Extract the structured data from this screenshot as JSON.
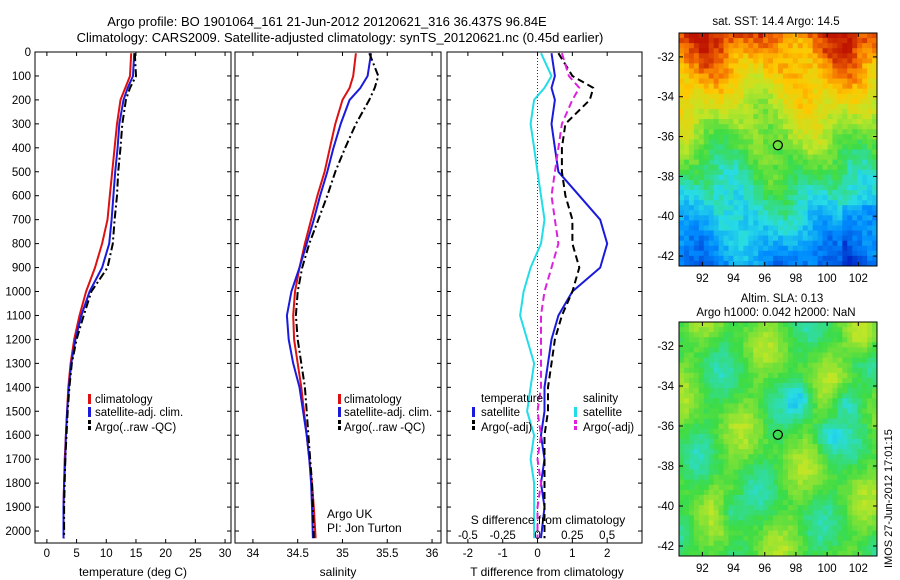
{
  "header": {
    "line1": "Argo profile: BO 1901064_161 21-Jun-2012 20120621_316 36.437S 96.84E",
    "line2": "Climatology: CARS2009. Satellite-adjusted climatology: synTS_20120621.nc (0.45d earlier)"
  },
  "credits": {
    "line1": "Argo UK",
    "line2": "PI: Jon Turton"
  },
  "side_stamp": "IMOS 27-Jun-2012 17:01:15",
  "colors": {
    "climatology": "#dd1111",
    "satellite": "#1a1add",
    "argo": "#000000",
    "salinity_sat": "#22dde8",
    "salinity_argo": "#dd22dd"
  },
  "chart_data": [
    {
      "id": "temperature",
      "type": "line",
      "xlabel": "temperature (deg C)",
      "ylabel": "",
      "xlim": [
        -2,
        31
      ],
      "ylim": [
        2050,
        0
      ],
      "xticks": [
        0,
        5,
        10,
        15,
        20,
        25,
        30
      ],
      "yticks": [
        0,
        100,
        200,
        300,
        400,
        500,
        600,
        700,
        800,
        900,
        1000,
        1100,
        1200,
        1300,
        1400,
        1500,
        1600,
        1700,
        1800,
        1900,
        2000
      ],
      "legend": [
        "climatology",
        "satellite-adj. clim.",
        "Argo(..raw -QC)"
      ],
      "series": [
        {
          "name": "climatology",
          "style": "solid",
          "color": "#dd1111",
          "x": [
            14.2,
            14.0,
            13.2,
            12.4,
            11.8,
            11.4,
            11.0,
            10.6,
            10.2,
            9.3,
            8.1,
            6.6,
            5.5,
            4.6,
            4.0,
            3.6,
            3.4,
            3.2,
            3.0,
            2.9,
            2.8,
            2.8
          ],
          "y": [
            5,
            100,
            150,
            200,
            300,
            400,
            500,
            600,
            700,
            800,
            900,
            1000,
            1100,
            1200,
            1300,
            1400,
            1500,
            1600,
            1700,
            1800,
            1900,
            2030
          ]
        },
        {
          "name": "satellite-adj. clim.",
          "style": "solid",
          "color": "#1a1add",
          "x": [
            14.7,
            14.5,
            13.6,
            12.9,
            12.2,
            11.9,
            11.5,
            11.2,
            10.9,
            10.5,
            9.3,
            7.2,
            5.8,
            4.8,
            4.1,
            3.7,
            3.4,
            3.2,
            3.1,
            2.9,
            2.8,
            2.8
          ],
          "y": [
            5,
            100,
            150,
            200,
            300,
            400,
            500,
            600,
            700,
            800,
            900,
            1000,
            1100,
            1200,
            1300,
            1400,
            1500,
            1600,
            1700,
            1800,
            1900,
            2030
          ]
        },
        {
          "name": "Argo(..raw -QC)",
          "style": "dashdot",
          "color": "#000000",
          "x": [
            14.8,
            15.0,
            14.0,
            13.3,
            12.7,
            12.4,
            12.0,
            11.8,
            11.4,
            11.1,
            10.2,
            7.5,
            6.2,
            5.0,
            4.2,
            3.8,
            3.5,
            3.3,
            3.1,
            3.0,
            2.9,
            2.9
          ],
          "y": [
            5,
            100,
            150,
            200,
            300,
            400,
            500,
            600,
            700,
            800,
            900,
            1000,
            1100,
            1200,
            1300,
            1400,
            1500,
            1600,
            1700,
            1800,
            1900,
            2030
          ]
        }
      ]
    },
    {
      "id": "salinity",
      "type": "line",
      "xlabel": "salinity",
      "xlim": [
        33.8,
        36.1
      ],
      "ylim": [
        2050,
        0
      ],
      "xticks": [
        34,
        34.5,
        35,
        35.5,
        36
      ],
      "legend": [
        "climatology",
        "satellite-adj. clim.",
        "Argo(..raw -QC)"
      ],
      "series": [
        {
          "name": "climatology",
          "style": "solid",
          "color": "#dd1111",
          "x": [
            35.15,
            35.12,
            35.08,
            35.0,
            34.92,
            34.86,
            34.8,
            34.72,
            34.65,
            34.58,
            34.52,
            34.47,
            34.45,
            34.46,
            34.5,
            34.54,
            34.57,
            34.6,
            34.63,
            34.66,
            34.68,
            34.7
          ],
          "y": [
            5,
            100,
            150,
            200,
            300,
            400,
            500,
            600,
            700,
            800,
            900,
            1000,
            1100,
            1200,
            1300,
            1400,
            1500,
            1600,
            1700,
            1800,
            1900,
            2030
          ]
        },
        {
          "name": "satellite-adj. clim.",
          "style": "solid",
          "color": "#1a1add",
          "x": [
            35.32,
            35.28,
            35.2,
            35.08,
            34.98,
            34.9,
            34.83,
            34.75,
            34.68,
            34.6,
            34.52,
            34.43,
            34.38,
            34.4,
            34.45,
            34.52,
            34.56,
            34.6,
            34.63,
            34.65,
            34.66,
            34.67
          ],
          "y": [
            5,
            100,
            150,
            200,
            300,
            400,
            500,
            600,
            700,
            800,
            900,
            1000,
            1100,
            1200,
            1300,
            1400,
            1500,
            1600,
            1700,
            1800,
            1900,
            2030
          ]
        },
        {
          "name": "Argo(..raw -QC)",
          "style": "dashdot",
          "color": "#000000",
          "x": [
            35.3,
            35.4,
            35.36,
            35.3,
            35.15,
            35.03,
            34.92,
            34.83,
            34.73,
            34.63,
            34.55,
            34.5,
            34.48,
            34.5,
            34.54,
            34.58,
            34.6,
            34.62,
            34.64,
            34.66,
            34.67,
            34.68
          ],
          "y": [
            5,
            100,
            150,
            200,
            300,
            400,
            500,
            600,
            700,
            800,
            900,
            1000,
            1100,
            1200,
            1300,
            1400,
            1500,
            1600,
            1700,
            1800,
            1900,
            2030
          ]
        }
      ]
    },
    {
      "id": "difference",
      "type": "line",
      "xlabel": "T difference from climatology",
      "xlabel_top": "S difference from climatology",
      "xlim": [
        -2.6,
        3.0
      ],
      "ylim": [
        2050,
        0
      ],
      "xticks": [
        -2,
        -1,
        0,
        1,
        2
      ],
      "xticks_s": [
        "-0.5",
        "-0.25",
        "0",
        "0.25",
        "0.5"
      ],
      "xticks_s_pos": [
        -2,
        -1,
        0,
        1,
        2
      ],
      "legend_temperature": {
        "title": "temperature",
        "items": [
          "satellite",
          "Argo(-adj)"
        ]
      },
      "legend_salinity": {
        "title": "salinity",
        "items": [
          "satellite",
          "Argo(-adj)"
        ]
      },
      "series": [
        {
          "name": "temperature satellite",
          "style": "solid",
          "color": "#1a1add",
          "x": [
            0.4,
            0.5,
            0.4,
            0.5,
            0.4,
            0.5,
            0.6,
            1.2,
            1.8,
            2.0,
            1.8,
            1.0,
            0.6,
            0.4,
            0.3,
            0.2,
            0.2,
            0.1,
            0.2,
            0.1,
            0.2,
            0.1
          ],
          "y": [
            5,
            100,
            150,
            200,
            300,
            400,
            500,
            600,
            700,
            800,
            900,
            1000,
            1100,
            1200,
            1300,
            1400,
            1500,
            1600,
            1700,
            1800,
            1900,
            2030
          ]
        },
        {
          "name": "temperature Argo(-adj)",
          "style": "dashed",
          "color": "#000000",
          "x": [
            0.6,
            1.0,
            1.6,
            1.5,
            0.8,
            0.7,
            0.7,
            0.8,
            1.0,
            1.0,
            1.2,
            1.0,
            0.7,
            0.5,
            0.4,
            0.3,
            0.3,
            0.2,
            0.2,
            0.2,
            0.2,
            0.2
          ],
          "y": [
            5,
            100,
            150,
            200,
            300,
            400,
            500,
            600,
            700,
            800,
            900,
            1000,
            1100,
            1200,
            1300,
            1400,
            1500,
            1600,
            1700,
            1800,
            1900,
            2030
          ]
        },
        {
          "name": "salinity satellite",
          "style": "solid",
          "color": "#22dde8",
          "x": [
            0.1,
            0.4,
            0.2,
            -0.1,
            -0.2,
            -0.1,
            0.0,
            0.1,
            0.2,
            0.1,
            -0.2,
            -0.4,
            -0.5,
            -0.3,
            -0.1,
            -0.2,
            -0.3,
            -0.1,
            -0.2,
            -0.1,
            -0.1,
            -0.1
          ],
          "y": [
            5,
            100,
            150,
            200,
            300,
            400,
            500,
            600,
            700,
            800,
            900,
            1000,
            1100,
            1200,
            1300,
            1400,
            1500,
            1600,
            1700,
            1800,
            1900,
            2030
          ]
        },
        {
          "name": "salinity Argo(-adj)",
          "style": "dashed",
          "color": "#dd22dd",
          "x": [
            0.7,
            0.9,
            1.2,
            1.0,
            0.7,
            0.6,
            0.5,
            0.4,
            0.5,
            0.6,
            0.4,
            0.2,
            0.1,
            0.1,
            0.1,
            0.1,
            0.0,
            0.1,
            0.0,
            0.1,
            0.0,
            0.0
          ],
          "y": [
            5,
            100,
            150,
            200,
            300,
            400,
            500,
            600,
            700,
            800,
            900,
            1000,
            1100,
            1200,
            1300,
            1400,
            1500,
            1600,
            1700,
            1800,
            1900,
            2030
          ]
        }
      ]
    },
    {
      "id": "sst-map",
      "type": "heatmap",
      "title": "sat. SST: 14.4 Argo: 14.5",
      "xlim": [
        90.5,
        103.2
      ],
      "ylim": [
        -42.5,
        -30.8
      ],
      "xticks": [
        92,
        94,
        96,
        98,
        100,
        102
      ],
      "yticks": [
        -32,
        -34,
        -36,
        -38,
        -40,
        -42
      ],
      "marker": {
        "lon": 96.84,
        "lat": -36.437
      }
    },
    {
      "id": "sla-map",
      "type": "heatmap",
      "title": "Altim. SLA: 0.13",
      "subtitle": "Argo h1000: 0.042 h2000: NaN",
      "xlim": [
        90.5,
        103.2
      ],
      "ylim": [
        -42.5,
        -30.8
      ],
      "xticks": [
        92,
        94,
        96,
        98,
        100,
        102
      ],
      "yticks": [
        -32,
        -34,
        -36,
        -38,
        -40,
        -42
      ],
      "marker": {
        "lon": 96.84,
        "lat": -36.437
      }
    }
  ]
}
